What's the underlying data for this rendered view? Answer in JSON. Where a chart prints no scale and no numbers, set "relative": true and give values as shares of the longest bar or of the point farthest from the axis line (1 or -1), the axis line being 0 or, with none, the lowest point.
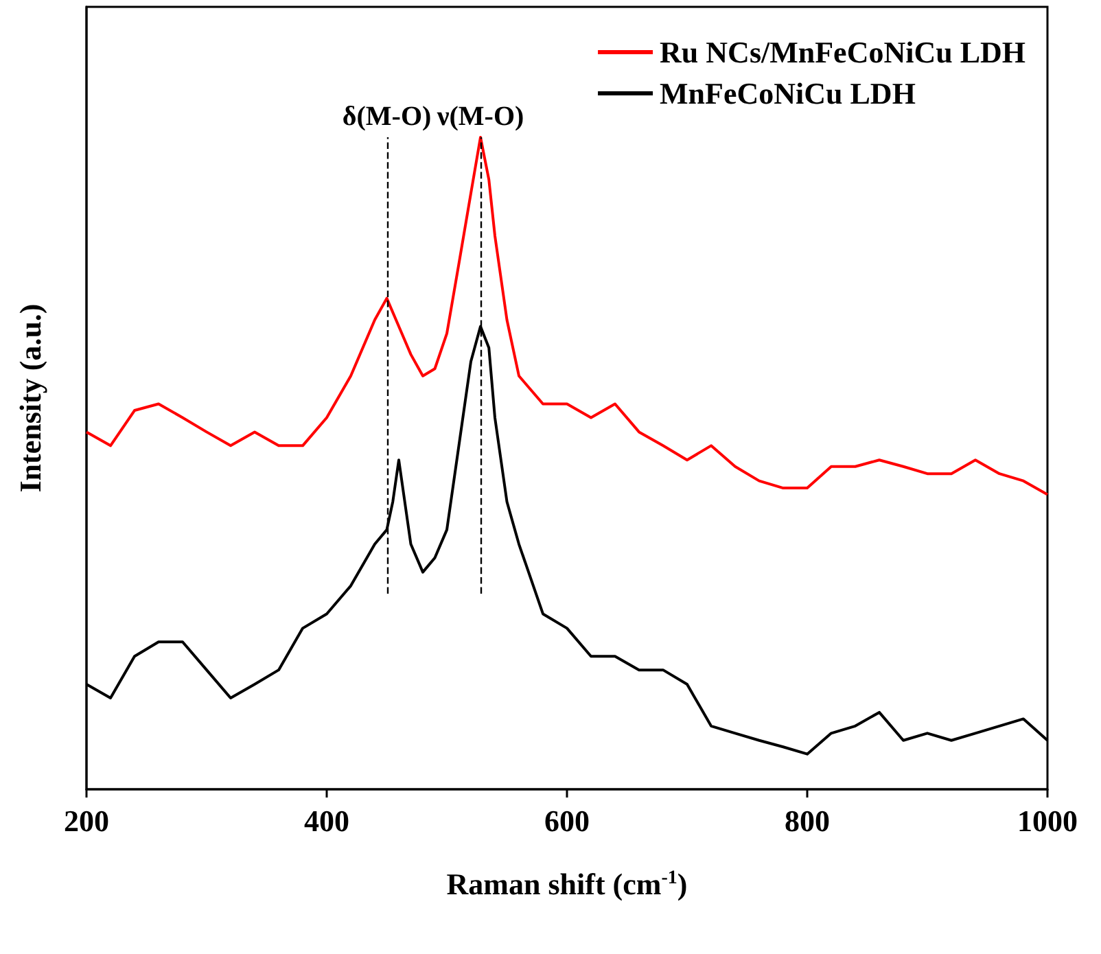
{
  "chart_data": {
    "type": "line",
    "relative": true,
    "xlabel": "Raman shift (cm$^{-1}$)",
    "ylabel": "Intensity (a.u.)",
    "xlim": [
      200,
      1000
    ],
    "xticks": [
      200,
      400,
      600,
      800,
      1000
    ],
    "legend": "top right",
    "grid": false,
    "marker": "none",
    "line_style": "solid",
    "x": [
      200,
      220,
      240,
      260,
      280,
      300,
      320,
      340,
      360,
      380,
      400,
      420,
      440,
      450,
      460,
      470,
      480,
      490,
      500,
      510,
      520,
      528,
      535,
      540,
      550,
      560,
      580,
      600,
      620,
      640,
      660,
      680,
      700,
      720,
      740,
      760,
      780,
      800,
      820,
      840,
      860,
      880,
      900,
      920,
      940,
      960,
      980,
      1000
    ],
    "series": [
      {
        "name": "Ru NCs/MnFeCoNiCu LDH",
        "color": "#ff0000",
        "values": [
          0.548,
          0.527,
          0.581,
          0.591,
          0.57,
          0.548,
          0.527,
          0.548,
          0.527,
          0.527,
          0.57,
          0.634,
          0.72,
          0.753,
          0.71,
          0.667,
          0.634,
          0.645,
          0.699,
          0.806,
          0.914,
          1,
          0.935,
          0.849,
          0.72,
          0.634,
          0.591,
          0.591,
          0.57,
          0.591,
          0.548,
          0.527,
          0.505,
          0.527,
          0.495,
          0.473,
          0.462,
          0.462,
          0.495,
          0.495,
          0.505,
          0.495,
          0.484,
          0.484,
          0.505,
          0.484,
          0.473,
          0.452
        ]
      },
      {
        "name": "MnFeCoNiCu LDH",
        "color": "#000000",
        "x": [
          200,
          220,
          240,
          260,
          280,
          300,
          320,
          340,
          360,
          380,
          400,
          420,
          440,
          450,
          455,
          460,
          470,
          480,
          490,
          500,
          510,
          520,
          528,
          535,
          540,
          550,
          560,
          580,
          600,
          620,
          640,
          660,
          680,
          700,
          720,
          740,
          760,
          780,
          800,
          820,
          840,
          860,
          880,
          900,
          920,
          940,
          960,
          980,
          1000
        ],
        "values": [
          0.161,
          0.14,
          0.204,
          0.226,
          0.226,
          0.183,
          0.14,
          0.161,
          0.183,
          0.247,
          0.269,
          0.312,
          0.376,
          0.398,
          0.441,
          0.505,
          0.376,
          0.333,
          0.355,
          0.398,
          0.527,
          0.656,
          0.71,
          0.677,
          0.57,
          0.441,
          0.376,
          0.269,
          0.247,
          0.204,
          0.204,
          0.183,
          0.183,
          0.161,
          0.097,
          0.086,
          0.075,
          0.065,
          0.054,
          0.086,
          0.097,
          0.118,
          0.075,
          0.086,
          0.075,
          0.086,
          0.097,
          0.108,
          0.075
        ]
      }
    ],
    "ref_lines": [
      {
        "axis": "x",
        "value": 450,
        "label": "δ(M-O)",
        "color": "#000000",
        "line_style": "dashed"
      },
      {
        "axis": "x",
        "value": 528,
        "label": "ν(M-O)",
        "color": "#000000",
        "line_style": "dashed"
      }
    ]
  }
}
